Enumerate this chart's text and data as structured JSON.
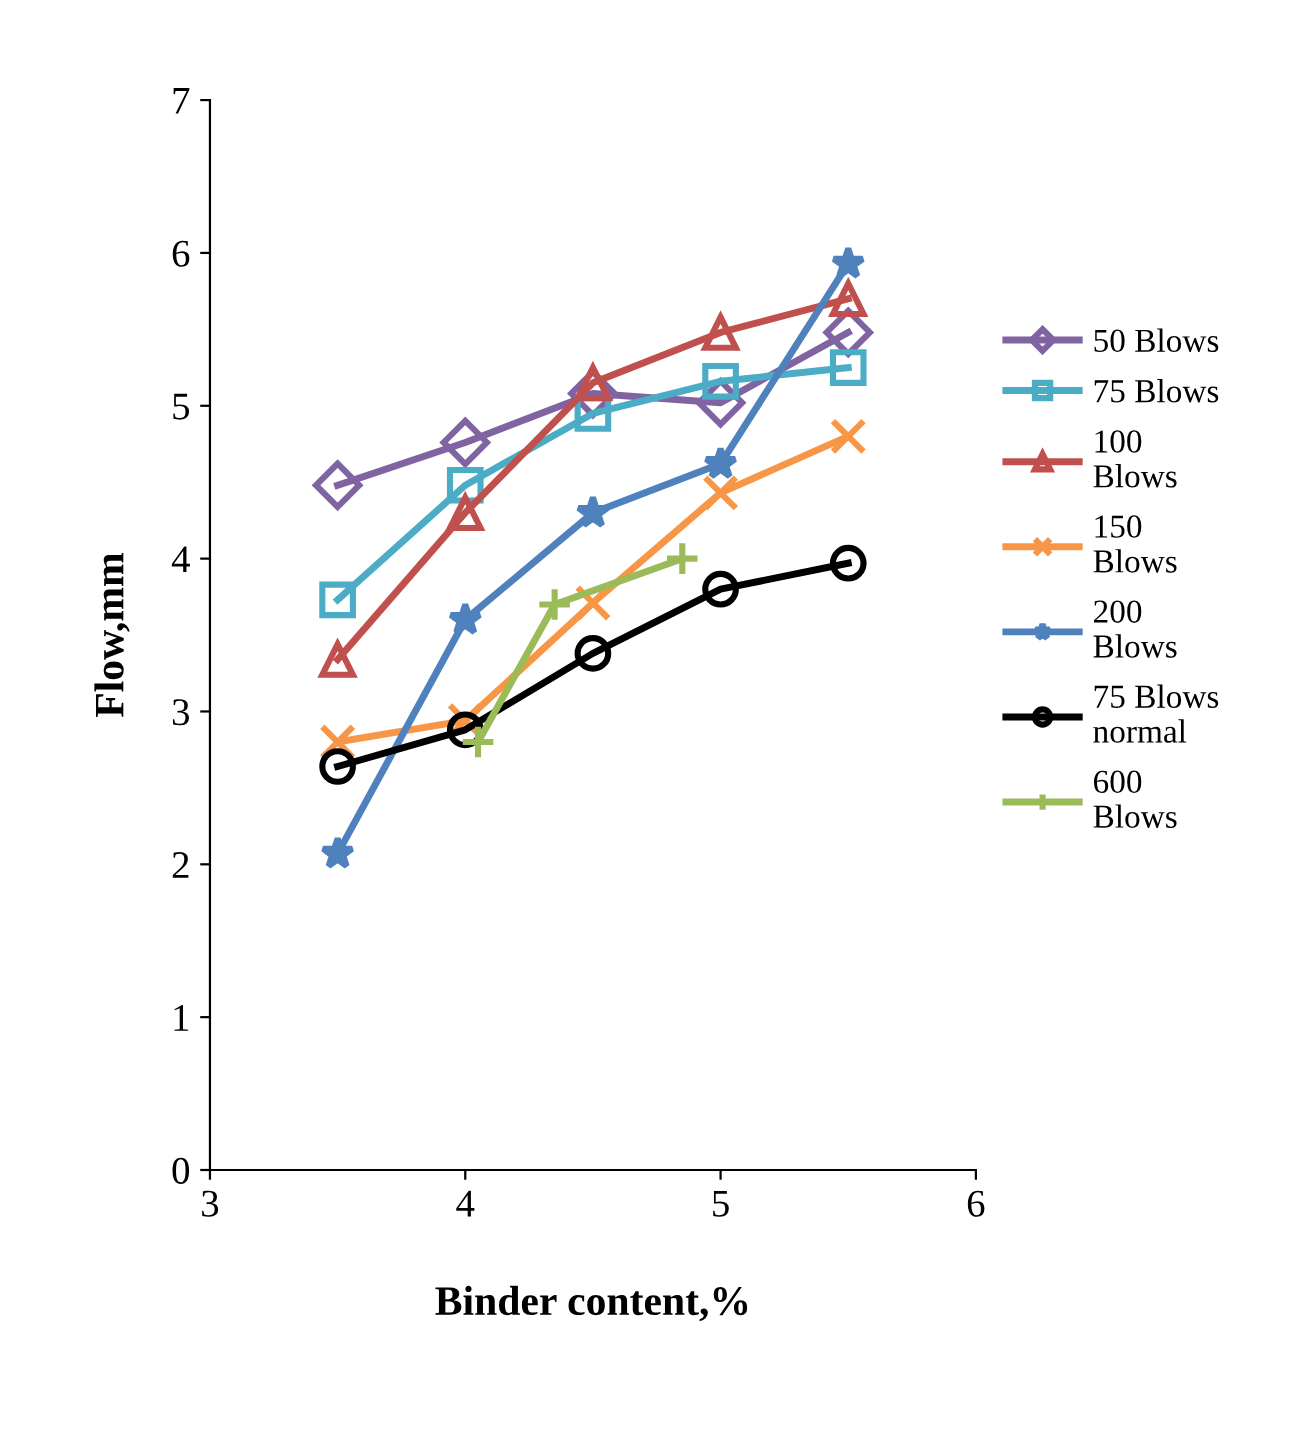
{
  "chart_data": {
    "type": "line",
    "xlabel": "Binder content,%",
    "ylabel": "Flow,mm",
    "xlim": [
      3,
      6
    ],
    "xticks": [
      3,
      4,
      5,
      6
    ],
    "ylim": [
      0,
      7
    ],
    "yticks": [
      0,
      1,
      2,
      3,
      4,
      5,
      6,
      7
    ],
    "grid": false,
    "legend": "right",
    "x": [
      3.5,
      4,
      4.5,
      5,
      5.5
    ],
    "series": [
      {
        "name": "50 Blows",
        "color": "#8064a2",
        "marker": "diamond",
        "values": [
          4.48,
          4.76,
          5.08,
          5.02,
          5.48
        ]
      },
      {
        "name": "75 Blows",
        "color": "#4bacc6",
        "marker": "square",
        "values": [
          3.73,
          4.48,
          4.95,
          5.16,
          5.25
        ]
      },
      {
        "name": "100 Blows",
        "color": "#c0504d",
        "marker": "triangle",
        "values": [
          3.34,
          4.3,
          5.15,
          5.48,
          5.7
        ]
      },
      {
        "name": "150 Blows",
        "color": "#f79646",
        "marker": "cross",
        "values": [
          2.8,
          2.94,
          3.71,
          4.43,
          4.8
        ]
      },
      {
        "name": "200 Blows",
        "color": "#4f81bd",
        "marker": "star",
        "values": [
          2.07,
          3.6,
          4.3,
          4.62,
          5.93
        ]
      },
      {
        "name": "75 Blows normal",
        "color": "#000000",
        "marker": "circle",
        "values": [
          2.64,
          2.88,
          3.38,
          3.8,
          3.97
        ]
      },
      {
        "name": "600 Blows",
        "color": "#9bbb59",
        "marker": "plus",
        "x": [
          4.05,
          4.35,
          4.85
        ],
        "values": [
          2.8,
          3.7,
          4.0
        ]
      }
    ]
  }
}
